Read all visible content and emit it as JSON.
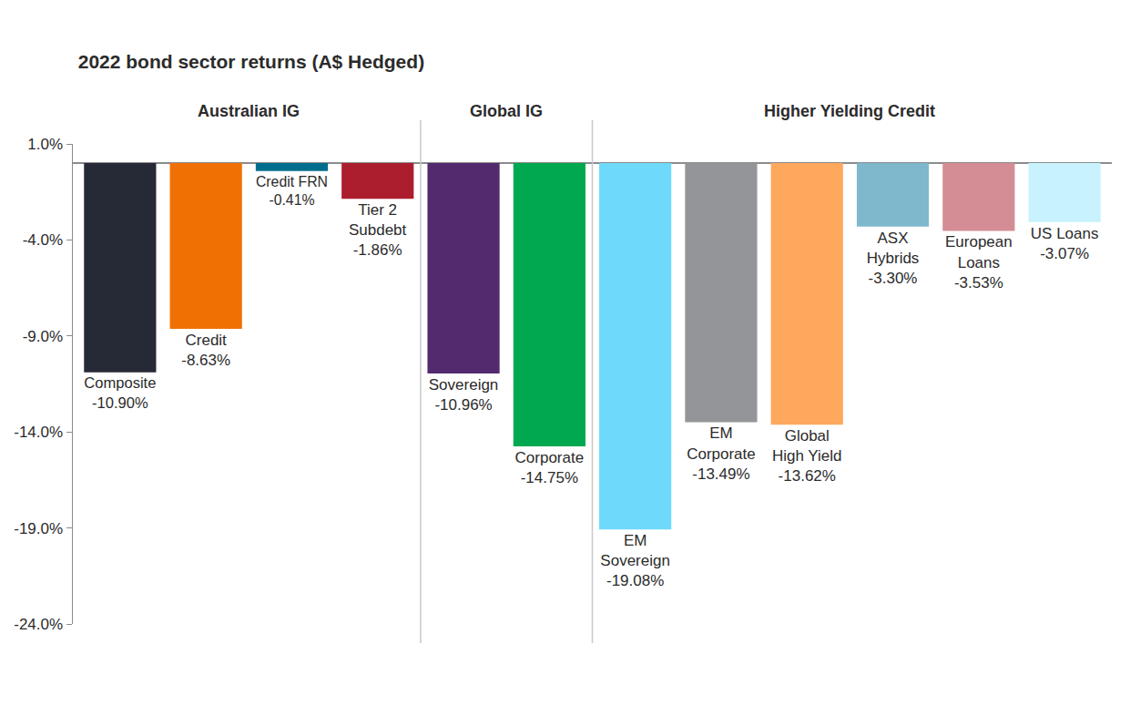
{
  "chart_data": {
    "type": "bar",
    "title": "2022 bond sector returns (A$ Hedged)",
    "categories": [
      "Composite",
      "Credit",
      "Credit FRN",
      "Tier 2 Subdebt",
      "Sovereign",
      "Corporate",
      "EM Sovereign",
      "EM Corporate",
      "Global High Yield",
      "ASX Hybrids",
      "European Loans",
      "US Loans"
    ],
    "values": [
      -10.9,
      -8.63,
      -0.41,
      -1.86,
      -10.96,
      -14.75,
      -19.08,
      -13.49,
      -13.62,
      -3.3,
      -3.53,
      -3.07
    ],
    "value_labels": [
      "-10.90%",
      "-8.63%",
      "-0.41%",
      "-1.86%",
      "-10.96%",
      "-14.75%",
      "-19.08%",
      "-13.49%",
      "-13.62%",
      "-3.30%",
      "-3.53%",
      "-3.07%"
    ],
    "colors": [
      "#252a36",
      "#f07004",
      "#006e8c",
      "#ac1d2e",
      "#532a6e",
      "#00a84f",
      "#6ed9fb",
      "#939598",
      "#fea85e",
      "#7fb8cd",
      "#d48d94",
      "#c8f2fd"
    ],
    "groups": [
      {
        "label": "Australian IG",
        "categories": [
          "Composite",
          "Credit",
          "Credit FRN",
          "Tier 2 Subdebt"
        ]
      },
      {
        "label": "Global IG",
        "categories": [
          "Sovereign",
          "Corporate"
        ]
      },
      {
        "label": "Higher Yielding Credit",
        "categories": [
          "EM Sovereign",
          "EM Corporate",
          "Global High Yield",
          "ASX Hybrids",
          "European Loans",
          "US Loans"
        ]
      }
    ],
    "ylim": [
      -24,
      1
    ],
    "yticks": [
      {
        "value": 1,
        "label": "1.0%"
      },
      {
        "value": -4,
        "label": "-4.0%"
      },
      {
        "value": -9,
        "label": "-9.0%"
      },
      {
        "value": -14,
        "label": "-14.0%"
      },
      {
        "value": -19,
        "label": "-19.0%"
      },
      {
        "value": -24,
        "label": "-24.0%"
      }
    ],
    "grid": false,
    "data_labels": true,
    "tick_labels": "y"
  }
}
